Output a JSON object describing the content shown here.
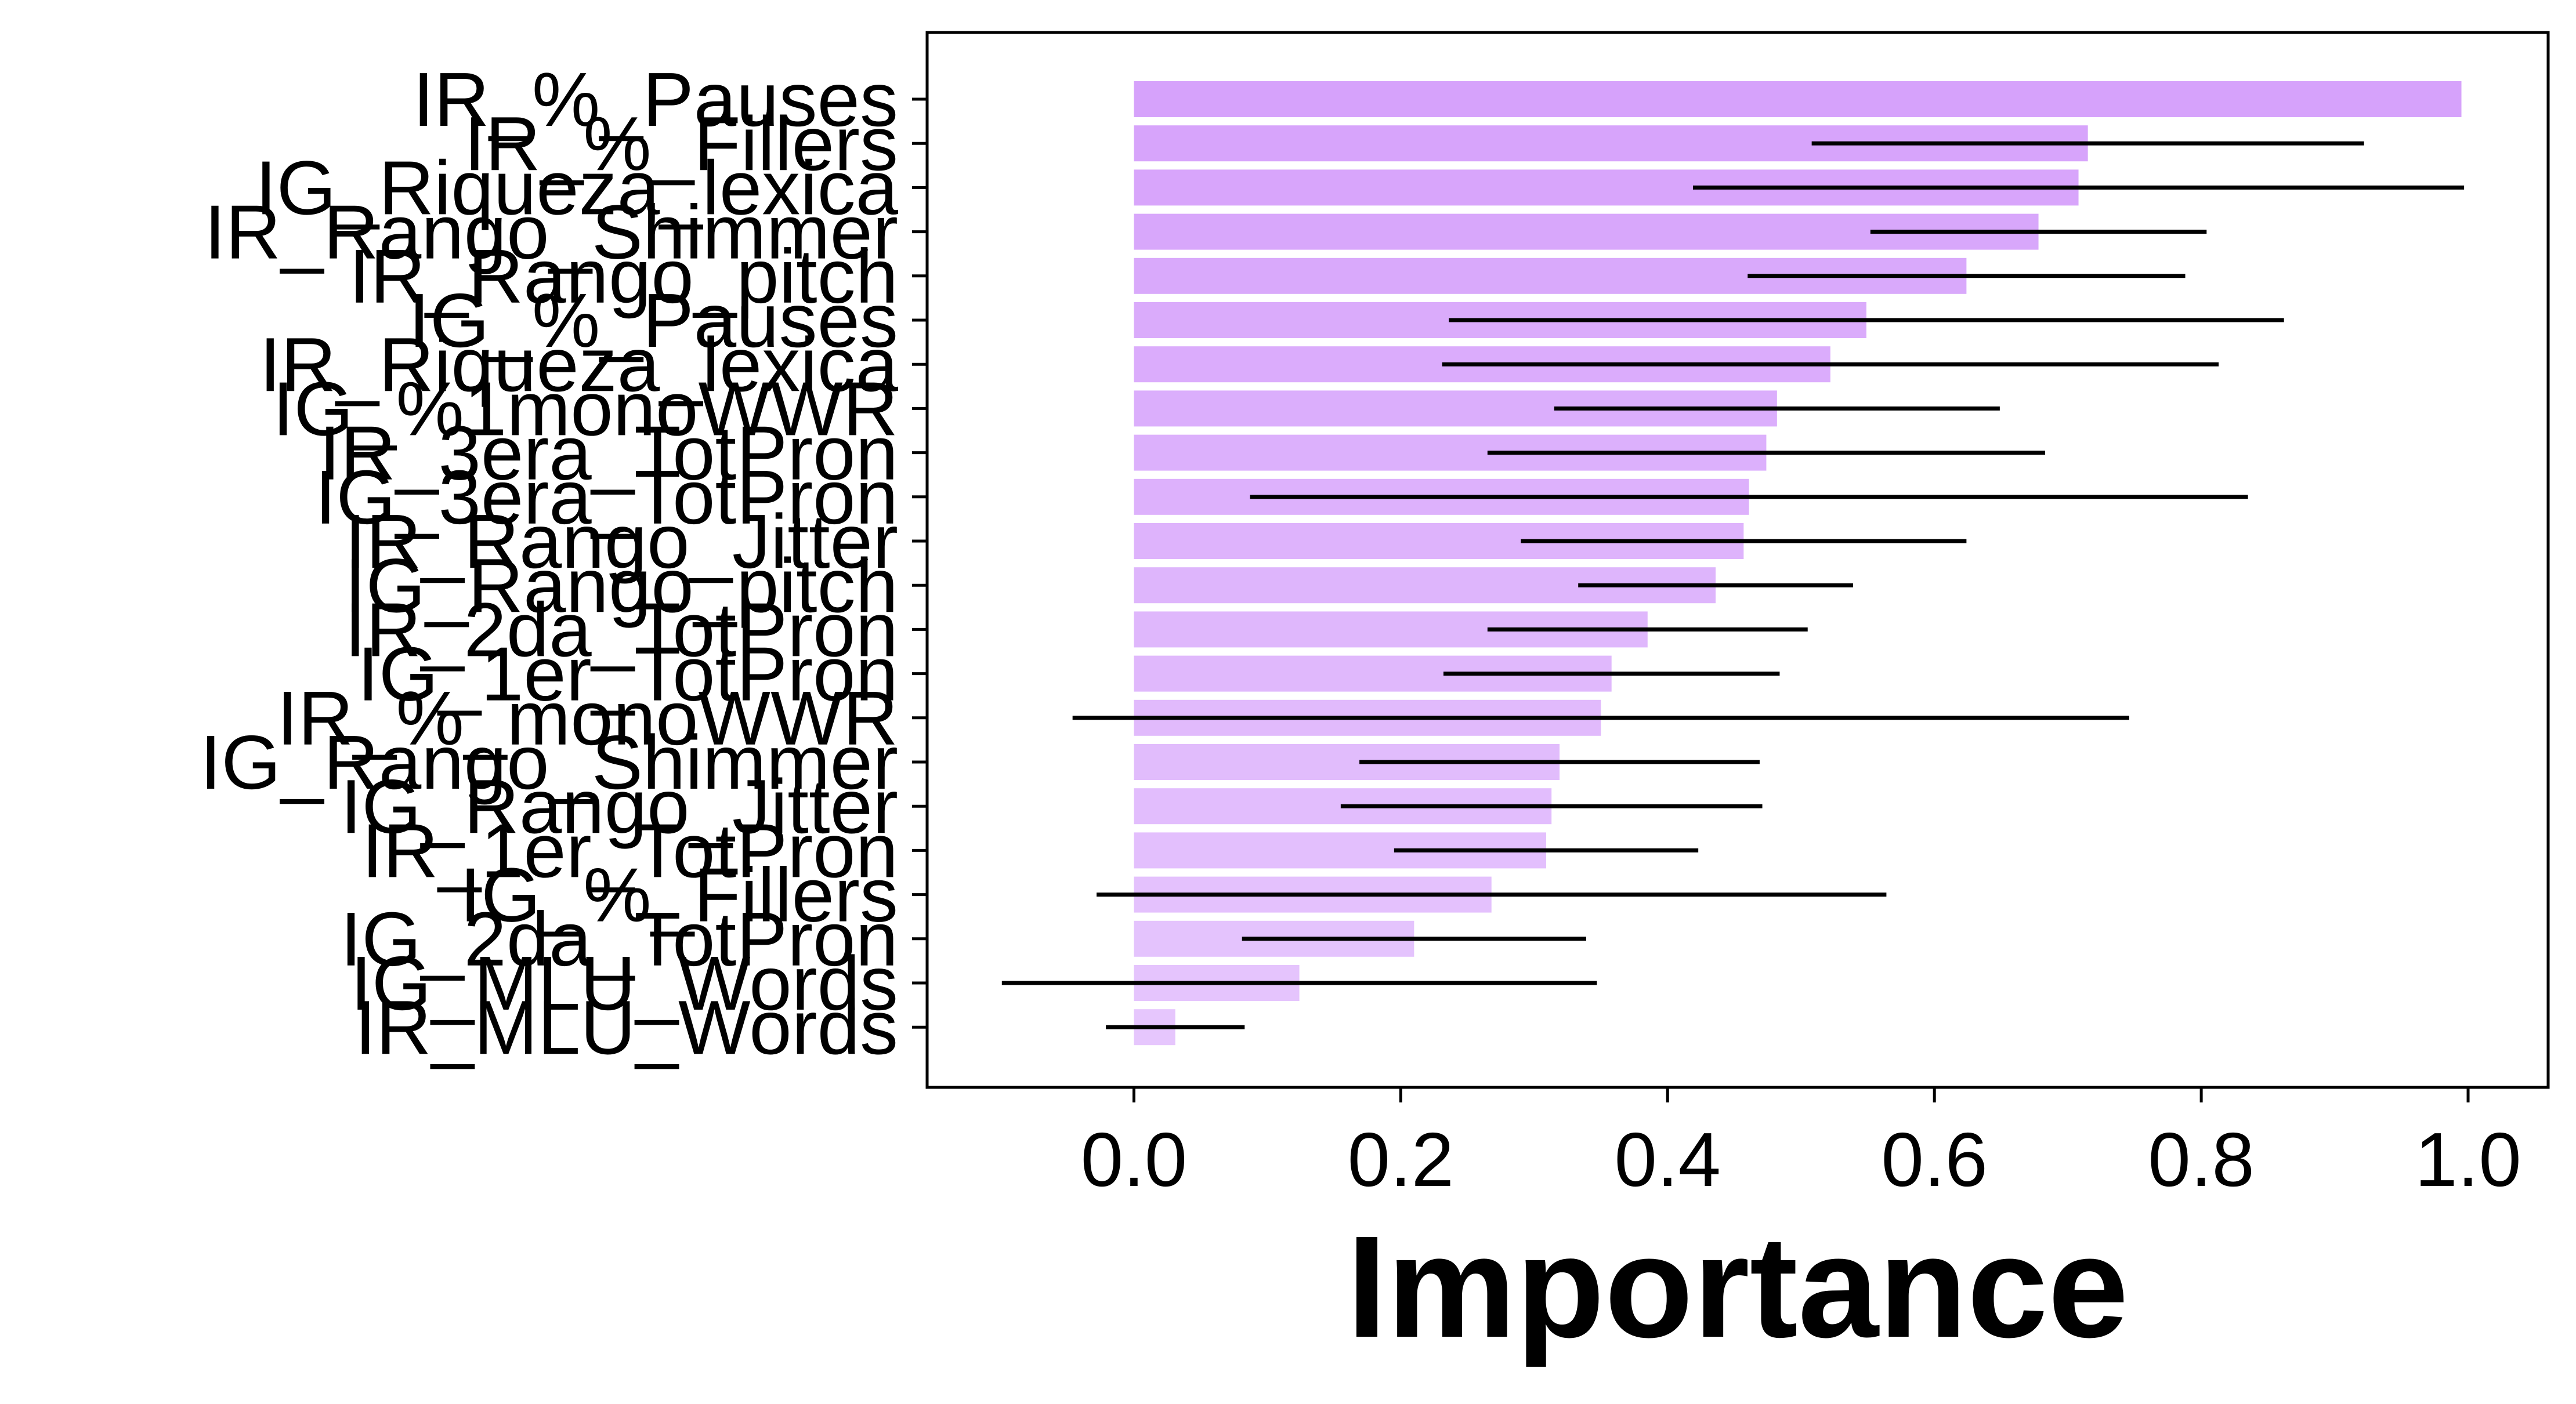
{
  "chart_data": {
    "type": "bar",
    "orientation": "horizontal",
    "title": "",
    "xlabel": "Importance",
    "ylabel": "",
    "xlim": [
      -0.155,
      1.06
    ],
    "xticks": [
      0.0,
      0.2,
      0.4,
      0.6,
      0.8,
      1.0
    ],
    "xtick_labels": [
      "0.0",
      "0.2",
      "0.4",
      "0.6",
      "0.8",
      "1.0"
    ],
    "grid": false,
    "legend": "none",
    "bar_color_top": "#d6a2fb",
    "bar_color_bottom": "#e6c6fd",
    "errorbar_color": "#000000",
    "categories": [
      "IR_%_Pauses",
      "IR_%_Fillers",
      "IG_Riqueza_lexica",
      "IR_Rango_Shimmer",
      "IR_Rango_pitch",
      "IG_%_Pauses",
      "IR_Riqueza_lexica",
      "IG_%1monoWWR",
      "IR_3era_TotPron",
      "IG_3era_TotPron",
      "IR_Rango_Jitter",
      "IG_Rango_pitch",
      "IR_2da_TotPron",
      "IG_1er_TotPron",
      "IR_%_monoWWR",
      "IG_Rango_Shimmer",
      "IG_Rango_Jitter",
      "IR_1er_TotPron",
      "IG_%_Fillers",
      "IG_2da_TotPron",
      "IG_MLU_Words",
      "IR_MLU_Words"
    ],
    "values": [
      0.995,
      0.715,
      0.708,
      0.678,
      0.624,
      0.549,
      0.522,
      0.482,
      0.474,
      0.461,
      0.457,
      0.436,
      0.385,
      0.358,
      0.35,
      0.319,
      0.313,
      0.309,
      0.268,
      0.21,
      0.124,
      0.031
    ],
    "errors": [
      null,
      0.207,
      0.289,
      0.126,
      0.164,
      0.313,
      0.291,
      0.167,
      0.209,
      0.374,
      0.167,
      0.103,
      0.12,
      0.126,
      0.396,
      0.15,
      0.158,
      0.114,
      0.296,
      0.129,
      0.223,
      0.052
    ]
  }
}
